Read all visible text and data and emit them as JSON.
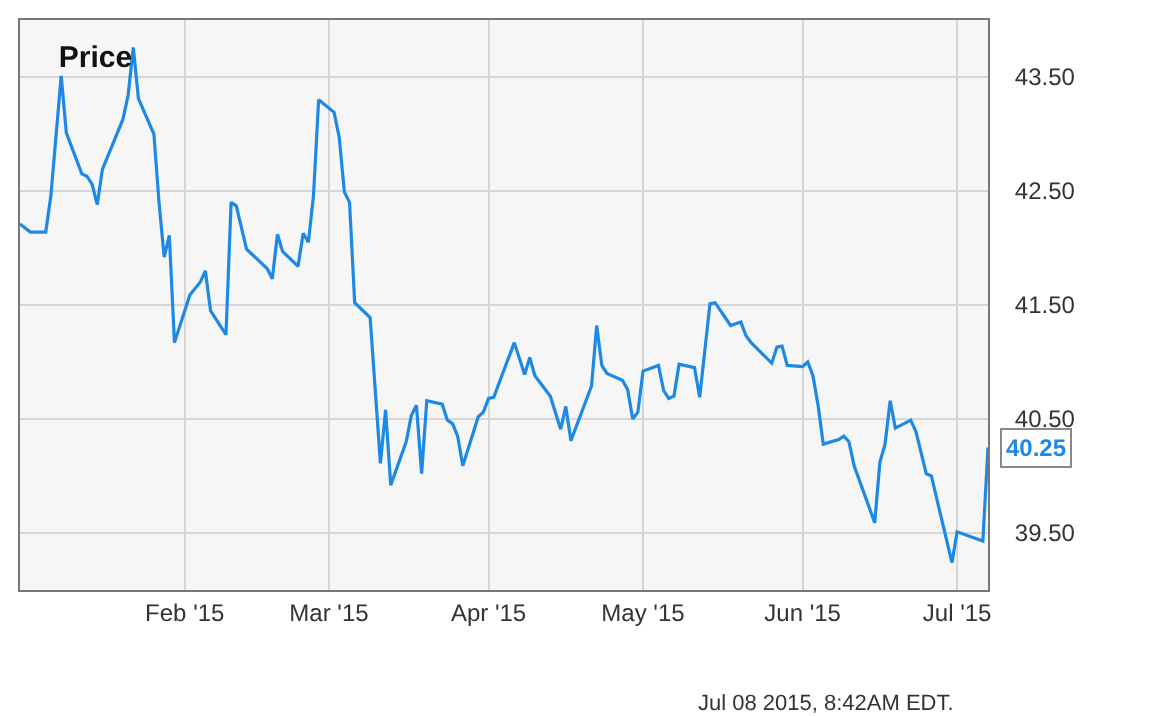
{
  "chart_data": {
    "type": "line",
    "title": "Price",
    "x": [
      "2014-12-31",
      "2015-01-02",
      "2015-01-05",
      "2015-01-06",
      "2015-01-08",
      "2015-01-09",
      "2015-01-12",
      "2015-01-13",
      "2015-01-14",
      "2015-01-15",
      "2015-01-16",
      "2015-01-20",
      "2015-01-21",
      "2015-01-22",
      "2015-01-23",
      "2015-01-26",
      "2015-01-27",
      "2015-01-28",
      "2015-01-29",
      "2015-01-30",
      "2015-02-02",
      "2015-02-04",
      "2015-02-05",
      "2015-02-06",
      "2015-02-09",
      "2015-02-10",
      "2015-02-11",
      "2015-02-13",
      "2015-02-17",
      "2015-02-18",
      "2015-02-19",
      "2015-02-20",
      "2015-02-23",
      "2015-02-24",
      "2015-02-25",
      "2015-02-26",
      "2015-02-27",
      "2015-03-02",
      "2015-03-03",
      "2015-03-04",
      "2015-03-05",
      "2015-03-06",
      "2015-03-09",
      "2015-03-11",
      "2015-03-12",
      "2015-03-13",
      "2015-03-16",
      "2015-03-17",
      "2015-03-18",
      "2015-03-19",
      "2015-03-20",
      "2015-03-23",
      "2015-03-24",
      "2015-03-25",
      "2015-03-26",
      "2015-03-27",
      "2015-03-30",
      "2015-03-31",
      "2015-04-01",
      "2015-04-02",
      "2015-04-06",
      "2015-04-08",
      "2015-04-09",
      "2015-04-10",
      "2015-04-13",
      "2015-04-15",
      "2015-04-16",
      "2015-04-17",
      "2015-04-21",
      "2015-04-22",
      "2015-04-23",
      "2015-04-24",
      "2015-04-27",
      "2015-04-28",
      "2015-04-29",
      "2015-04-30",
      "2015-05-01",
      "2015-05-04",
      "2015-05-05",
      "2015-05-06",
      "2015-05-07",
      "2015-05-08",
      "2015-05-11",
      "2015-05-12",
      "2015-05-14",
      "2015-05-15",
      "2015-05-18",
      "2015-05-20",
      "2015-05-21",
      "2015-05-22",
      "2015-05-26",
      "2015-05-27",
      "2015-05-28",
      "2015-05-29",
      "2015-06-01",
      "2015-06-02",
      "2015-06-03",
      "2015-06-04",
      "2015-06-05",
      "2015-06-08",
      "2015-06-09",
      "2015-06-10",
      "2015-06-11",
      "2015-06-15",
      "2015-06-16",
      "2015-06-17",
      "2015-06-18",
      "2015-06-19",
      "2015-06-22",
      "2015-06-23",
      "2015-06-25",
      "2015-06-26",
      "2015-06-30",
      "2015-07-01",
      "2015-07-06",
      "2015-07-07"
    ],
    "series": [
      {
        "color": "#1e88e5",
        "values": [
          42.21,
          42.14,
          42.14,
          42.46,
          43.51,
          43.01,
          42.65,
          42.63,
          42.56,
          42.38,
          42.69,
          43.13,
          43.34,
          43.76,
          43.31,
          43.0,
          42.4,
          41.92,
          42.11,
          41.17,
          41.59,
          41.7,
          41.8,
          41.45,
          41.24,
          42.4,
          42.37,
          41.99,
          41.82,
          41.73,
          42.12,
          41.97,
          41.84,
          42.13,
          42.05,
          42.46,
          43.3,
          43.19,
          42.97,
          42.49,
          42.4,
          41.52,
          41.39,
          40.11,
          40.58,
          39.92,
          40.3,
          40.53,
          40.62,
          40.02,
          40.66,
          40.63,
          40.49,
          40.46,
          40.35,
          40.09,
          40.52,
          40.56,
          40.68,
          40.69,
          41.17,
          40.89,
          41.04,
          40.88,
          40.7,
          40.41,
          40.61,
          40.31,
          40.79,
          41.32,
          40.97,
          40.9,
          40.84,
          40.76,
          40.5,
          40.56,
          40.92,
          40.97,
          40.75,
          40.68,
          40.7,
          40.98,
          40.95,
          40.69,
          41.51,
          41.52,
          41.32,
          41.35,
          41.23,
          41.17,
          40.99,
          41.13,
          41.14,
          40.97,
          40.96,
          41.0,
          40.88,
          40.62,
          40.28,
          40.32,
          40.35,
          40.3,
          40.09,
          39.59,
          40.12,
          40.28,
          40.66,
          40.42,
          40.49,
          40.39,
          40.02,
          40.0,
          39.24,
          39.51,
          39.43,
          40.25
        ],
        "value_labels": [
          null,
          null,
          null,
          null,
          null,
          null,
          null,
          null,
          null,
          null,
          null,
          null,
          null,
          null,
          null,
          null,
          null,
          null,
          null,
          null,
          null,
          null,
          null,
          null,
          null,
          null,
          null,
          null,
          null,
          null,
          null,
          null,
          null,
          null,
          null,
          null,
          null,
          null,
          null,
          null,
          null,
          null,
          null,
          null,
          null,
          null,
          null,
          null,
          null,
          null,
          null,
          null,
          null,
          null,
          null,
          null,
          null,
          null,
          null,
          null,
          null,
          null,
          null,
          null,
          null,
          null,
          null,
          null,
          null,
          null,
          null,
          null,
          null,
          null,
          null,
          null,
          null,
          null,
          null,
          null,
          null,
          null,
          null,
          null,
          null,
          null,
          null,
          null,
          null,
          null,
          null,
          null,
          null,
          null,
          null,
          null,
          null,
          null,
          null,
          null,
          null,
          null,
          null,
          null,
          null,
          null,
          null,
          null,
          null,
          null,
          null,
          null,
          null,
          null,
          null,
          "40.25"
        ]
      }
    ],
    "xlim": [
      "2014-12-31",
      "2015-07-07"
    ],
    "xticks": [
      {
        "value": "2015-02-01",
        "label": "Feb '15"
      },
      {
        "value": "2015-03-01",
        "label": "Mar '15"
      },
      {
        "value": "2015-04-01",
        "label": "Apr '15"
      },
      {
        "value": "2015-05-01",
        "label": "May '15"
      },
      {
        "value": "2015-06-01",
        "label": "Jun '15"
      },
      {
        "value": "2015-07-01",
        "label": "Jul '15"
      }
    ],
    "ylim": [
      39.0,
      44.0
    ],
    "yticks": [
      {
        "value": 39.5,
        "label": "39.50"
      },
      {
        "value": 40.5,
        "label": "40.50"
      },
      {
        "value": 41.5,
        "label": "41.50"
      },
      {
        "value": 42.5,
        "label": "42.50"
      },
      {
        "value": 43.5,
        "label": "43.50"
      }
    ],
    "grid": true,
    "marker": "none",
    "line_style": "solid",
    "annotations": [
      "Jul 08 2015, 8:42AM EDT."
    ]
  }
}
